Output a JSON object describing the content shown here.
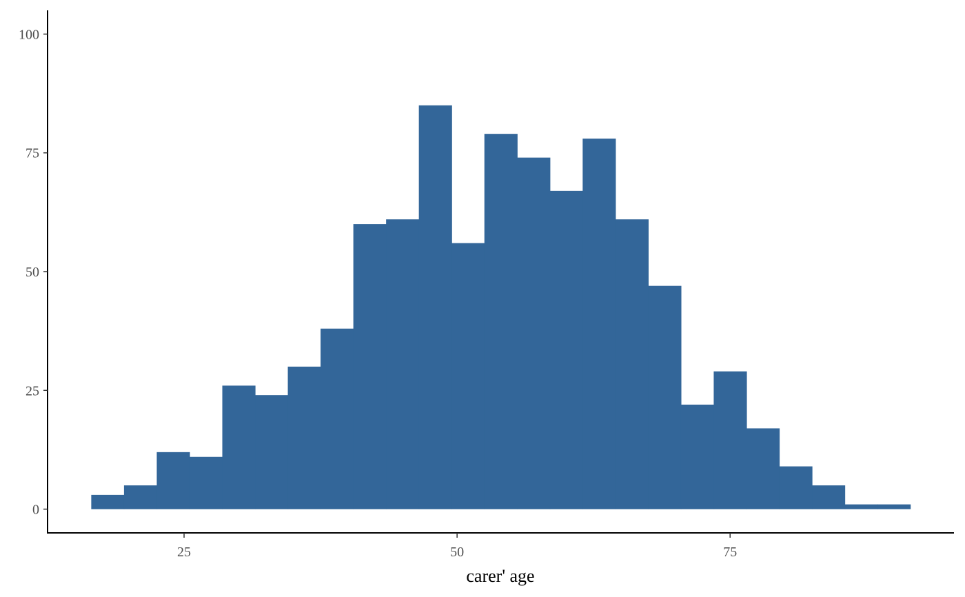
{
  "chart_data": {
    "type": "bar",
    "subtype": "histogram",
    "xlabel": "carer' age",
    "ylabel": "",
    "color": "#336699",
    "bin_edges": [
      16.5,
      19.5,
      22.5,
      25.5,
      28.5,
      31.5,
      34.5,
      37.5,
      40.5,
      43.5,
      46.5,
      49.5,
      52.5,
      55.5,
      58.5,
      61.5,
      64.5,
      67.5,
      70.5,
      73.5,
      76.5,
      79.5,
      82.5,
      85.5,
      88.5,
      91.5
    ],
    "values": [
      3,
      5,
      12,
      11,
      26,
      24,
      30,
      38,
      60,
      61,
      85,
      56,
      79,
      74,
      67,
      78,
      61,
      47,
      22,
      29,
      17,
      9,
      5,
      1,
      1
    ],
    "xlim": [
      12.5,
      95.5
    ],
    "ylim": [
      -5,
      105
    ],
    "x_ticks": [
      25,
      50,
      75
    ],
    "y_ticks": [
      0,
      25,
      50,
      75,
      100
    ],
    "grid": false,
    "legend": "none"
  }
}
